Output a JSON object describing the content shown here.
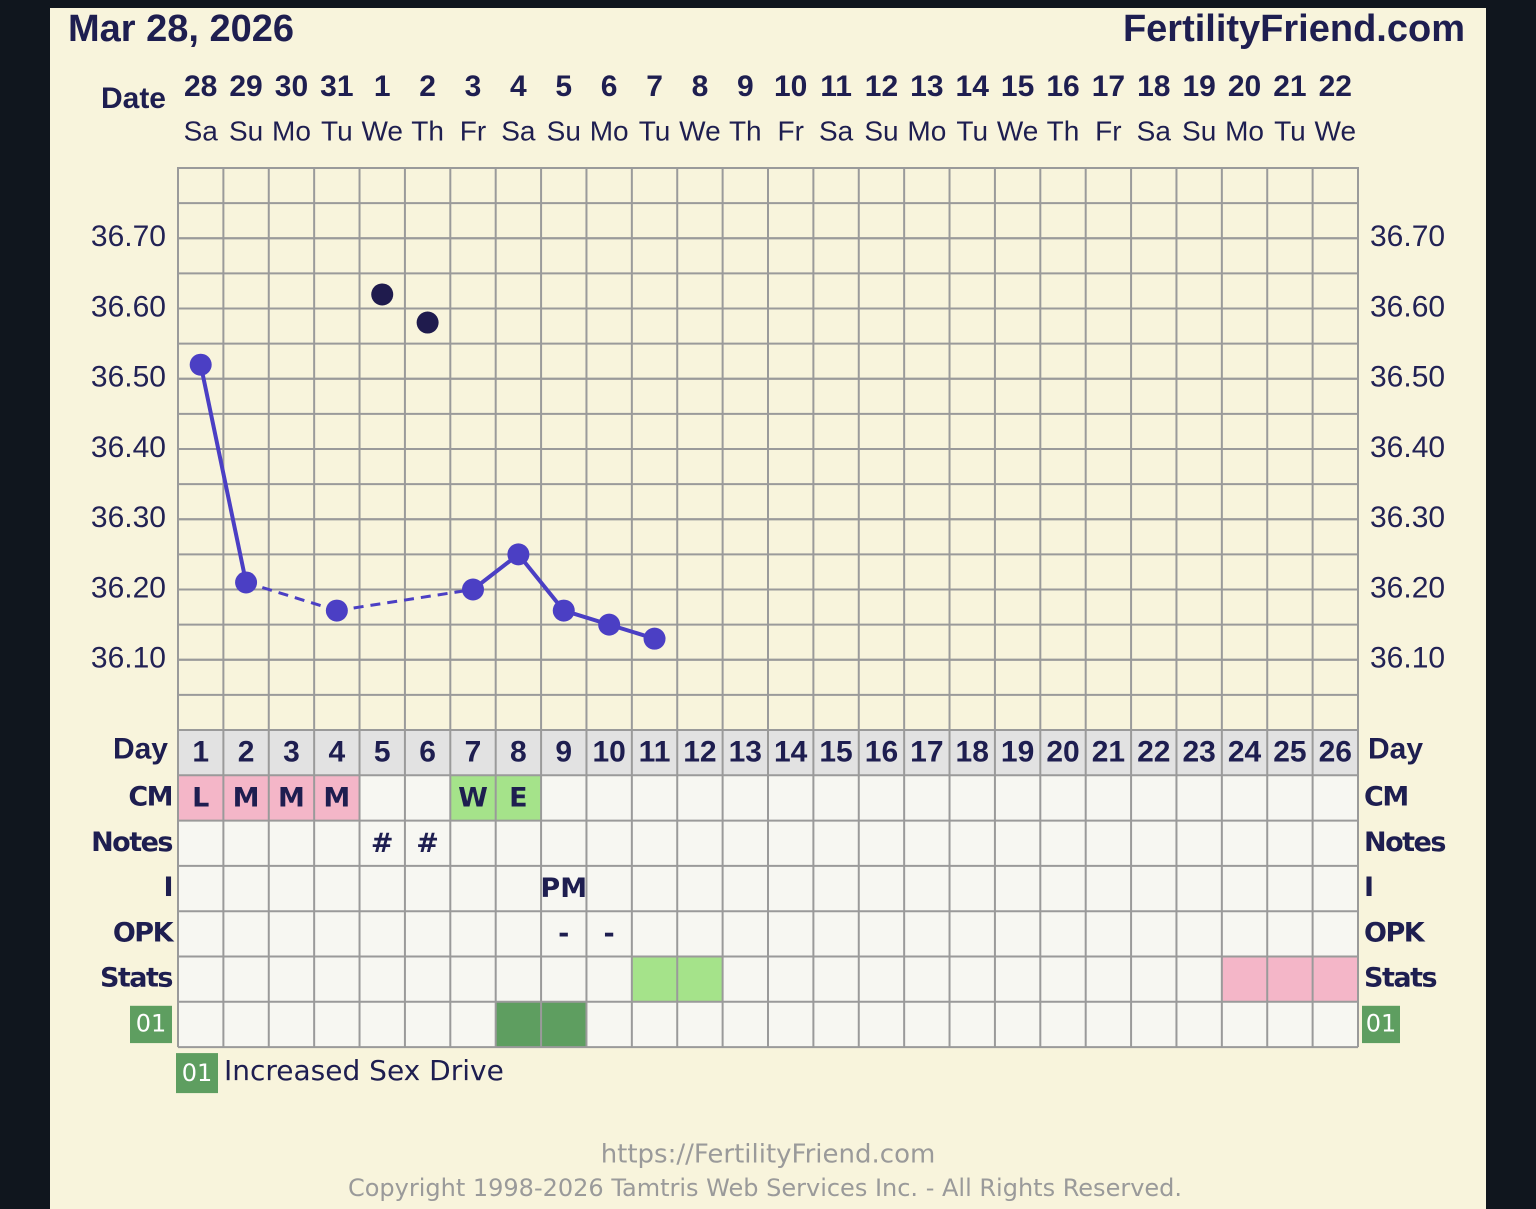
{
  "header": {
    "date": "Mar 28, 2026",
    "site": "FertilityFriend.com"
  },
  "chart_data": {
    "type": "line",
    "date_label": "Date",
    "dates": [
      28,
      29,
      30,
      31,
      1,
      2,
      3,
      4,
      5,
      6,
      7,
      8,
      9,
      10,
      11,
      12,
      13,
      14,
      15,
      16,
      17,
      18,
      19,
      20,
      21,
      22
    ],
    "weekdays": [
      "Sa",
      "Su",
      "Mo",
      "Tu",
      "We",
      "Th",
      "Fr",
      "Sa",
      "Su",
      "Mo",
      "Tu",
      "We",
      "Th",
      "Fr",
      "Sa",
      "Su",
      "Mo",
      "Tu",
      "We",
      "Th",
      "Fr",
      "Sa",
      "Su",
      "Mo",
      "Tu",
      "We"
    ],
    "day_label": "Day",
    "categories": [
      1,
      2,
      3,
      4,
      5,
      6,
      7,
      8,
      9,
      10,
      11,
      12,
      13,
      14,
      15,
      16,
      17,
      18,
      19,
      20,
      21,
      22,
      23,
      24,
      25,
      26
    ],
    "ylim": [
      36.0,
      36.8
    ],
    "yticks": [
      {
        "value": 36.1,
        "label": "36.10"
      },
      {
        "value": 36.2,
        "label": "36.20"
      },
      {
        "value": 36.3,
        "label": "36.30"
      },
      {
        "value": 36.4,
        "label": "36.40"
      },
      {
        "value": 36.5,
        "label": "36.50"
      },
      {
        "value": 36.6,
        "label": "36.60"
      },
      {
        "value": 36.7,
        "label": "36.70"
      }
    ],
    "grid": true,
    "temperatures": {
      "color": "#4b3fc4",
      "values": [
        36.52,
        36.21,
        null,
        36.17,
        null,
        null,
        36.2,
        36.25,
        36.17,
        36.15,
        36.13,
        null,
        null,
        null,
        null,
        null,
        null,
        null,
        null,
        null,
        null,
        null,
        null,
        null,
        null,
        null
      ]
    },
    "discarded": {
      "color": "#1f1b4d",
      "values": [
        null,
        null,
        null,
        null,
        36.62,
        36.58,
        null,
        null,
        null,
        null,
        null,
        null,
        null,
        null,
        null,
        null,
        null,
        null,
        null,
        null,
        null,
        null,
        null,
        null,
        null,
        null
      ]
    },
    "rows": [
      {
        "label": "CM",
        "cells": [
          "L",
          "M",
          "M",
          "M",
          null,
          null,
          "W",
          "E",
          null,
          null,
          null,
          null,
          null,
          null,
          null,
          null,
          null,
          null,
          null,
          null,
          null,
          null,
          null,
          null,
          null,
          null
        ],
        "colors": [
          "#f4b6c8",
          "#f4b6c8",
          "#f4b6c8",
          "#f4b6c8",
          null,
          null,
          "#a5e38a",
          "#a5e38a",
          null,
          null,
          null,
          null,
          null,
          null,
          null,
          null,
          null,
          null,
          null,
          null,
          null,
          null,
          null,
          null,
          null,
          null
        ]
      },
      {
        "label": "Notes",
        "cells": [
          null,
          null,
          null,
          null,
          "#",
          "#",
          null,
          null,
          null,
          null,
          null,
          null,
          null,
          null,
          null,
          null,
          null,
          null,
          null,
          null,
          null,
          null,
          null,
          null,
          null,
          null
        ]
      },
      {
        "label": "I",
        "cells": [
          null,
          null,
          null,
          null,
          null,
          null,
          null,
          null,
          "PM",
          null,
          null,
          null,
          null,
          null,
          null,
          null,
          null,
          null,
          null,
          null,
          null,
          null,
          null,
          null,
          null,
          null
        ]
      },
      {
        "label": "OPK",
        "cells": [
          null,
          null,
          null,
          null,
          null,
          null,
          null,
          null,
          "-",
          "-",
          null,
          null,
          null,
          null,
          null,
          null,
          null,
          null,
          null,
          null,
          null,
          null,
          null,
          null,
          null,
          null
        ]
      },
      {
        "label": "Stats",
        "colors": [
          null,
          null,
          null,
          null,
          null,
          null,
          null,
          null,
          null,
          null,
          "#a5e38a",
          "#a5e38a",
          null,
          null,
          null,
          null,
          null,
          null,
          null,
          null,
          null,
          null,
          null,
          "#f4b6c8",
          "#f4b6c8",
          "#f4b6c8"
        ]
      },
      {
        "label": "01",
        "label_color": "#5e9e60",
        "colors": [
          null,
          null,
          null,
          null,
          null,
          null,
          null,
          "#5e9e60",
          "#5e9e60",
          null,
          null,
          null,
          null,
          null,
          null,
          null,
          null,
          null,
          null,
          null,
          null,
          null,
          null,
          null,
          null,
          null
        ]
      }
    ],
    "legend": [
      {
        "code": "01",
        "text": "Increased Sex Drive",
        "color": "#5e9e60"
      }
    ]
  },
  "footer": {
    "url": "https://FertilityFriend.com",
    "copyright": "Copyright 1998-2026 Tamtris Web Services Inc. - All Rights Reserved."
  }
}
